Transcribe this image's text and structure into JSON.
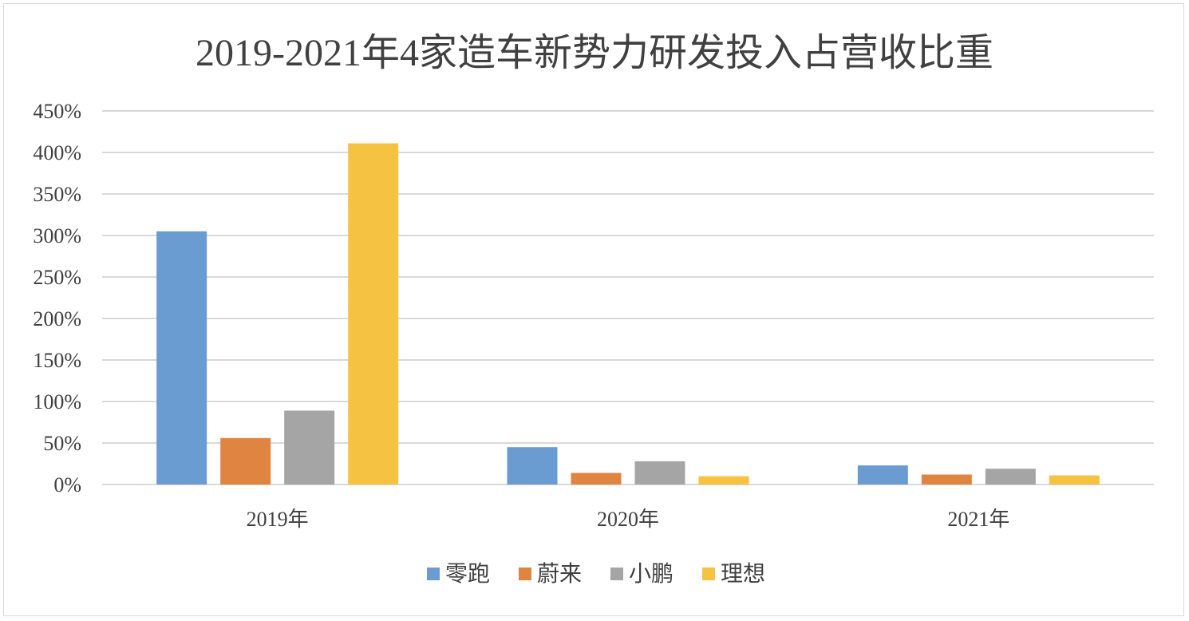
{
  "chart_data": {
    "type": "bar",
    "title": "2019-2021年4家造车新势力研发投入占营收比重",
    "xlabel": "",
    "ylabel": "",
    "categories": [
      "2019年",
      "2020年",
      "2021年"
    ],
    "ylim": [
      0,
      450
    ],
    "ytick_step": 50,
    "ytick_suffix": "%",
    "grid": true,
    "legend_position": "bottom",
    "series": [
      {
        "name": "零跑",
        "color": "#6a9bd1",
        "values": [
          305,
          45,
          23
        ]
      },
      {
        "name": "蔚来",
        "color": "#e08442",
        "values": [
          56,
          14,
          12
        ]
      },
      {
        "name": "小鹏",
        "color": "#a5a5a5",
        "values": [
          89,
          28,
          19
        ]
      },
      {
        "name": "理想",
        "color": "#f5c242",
        "values": [
          411,
          10,
          11
        ]
      }
    ]
  }
}
